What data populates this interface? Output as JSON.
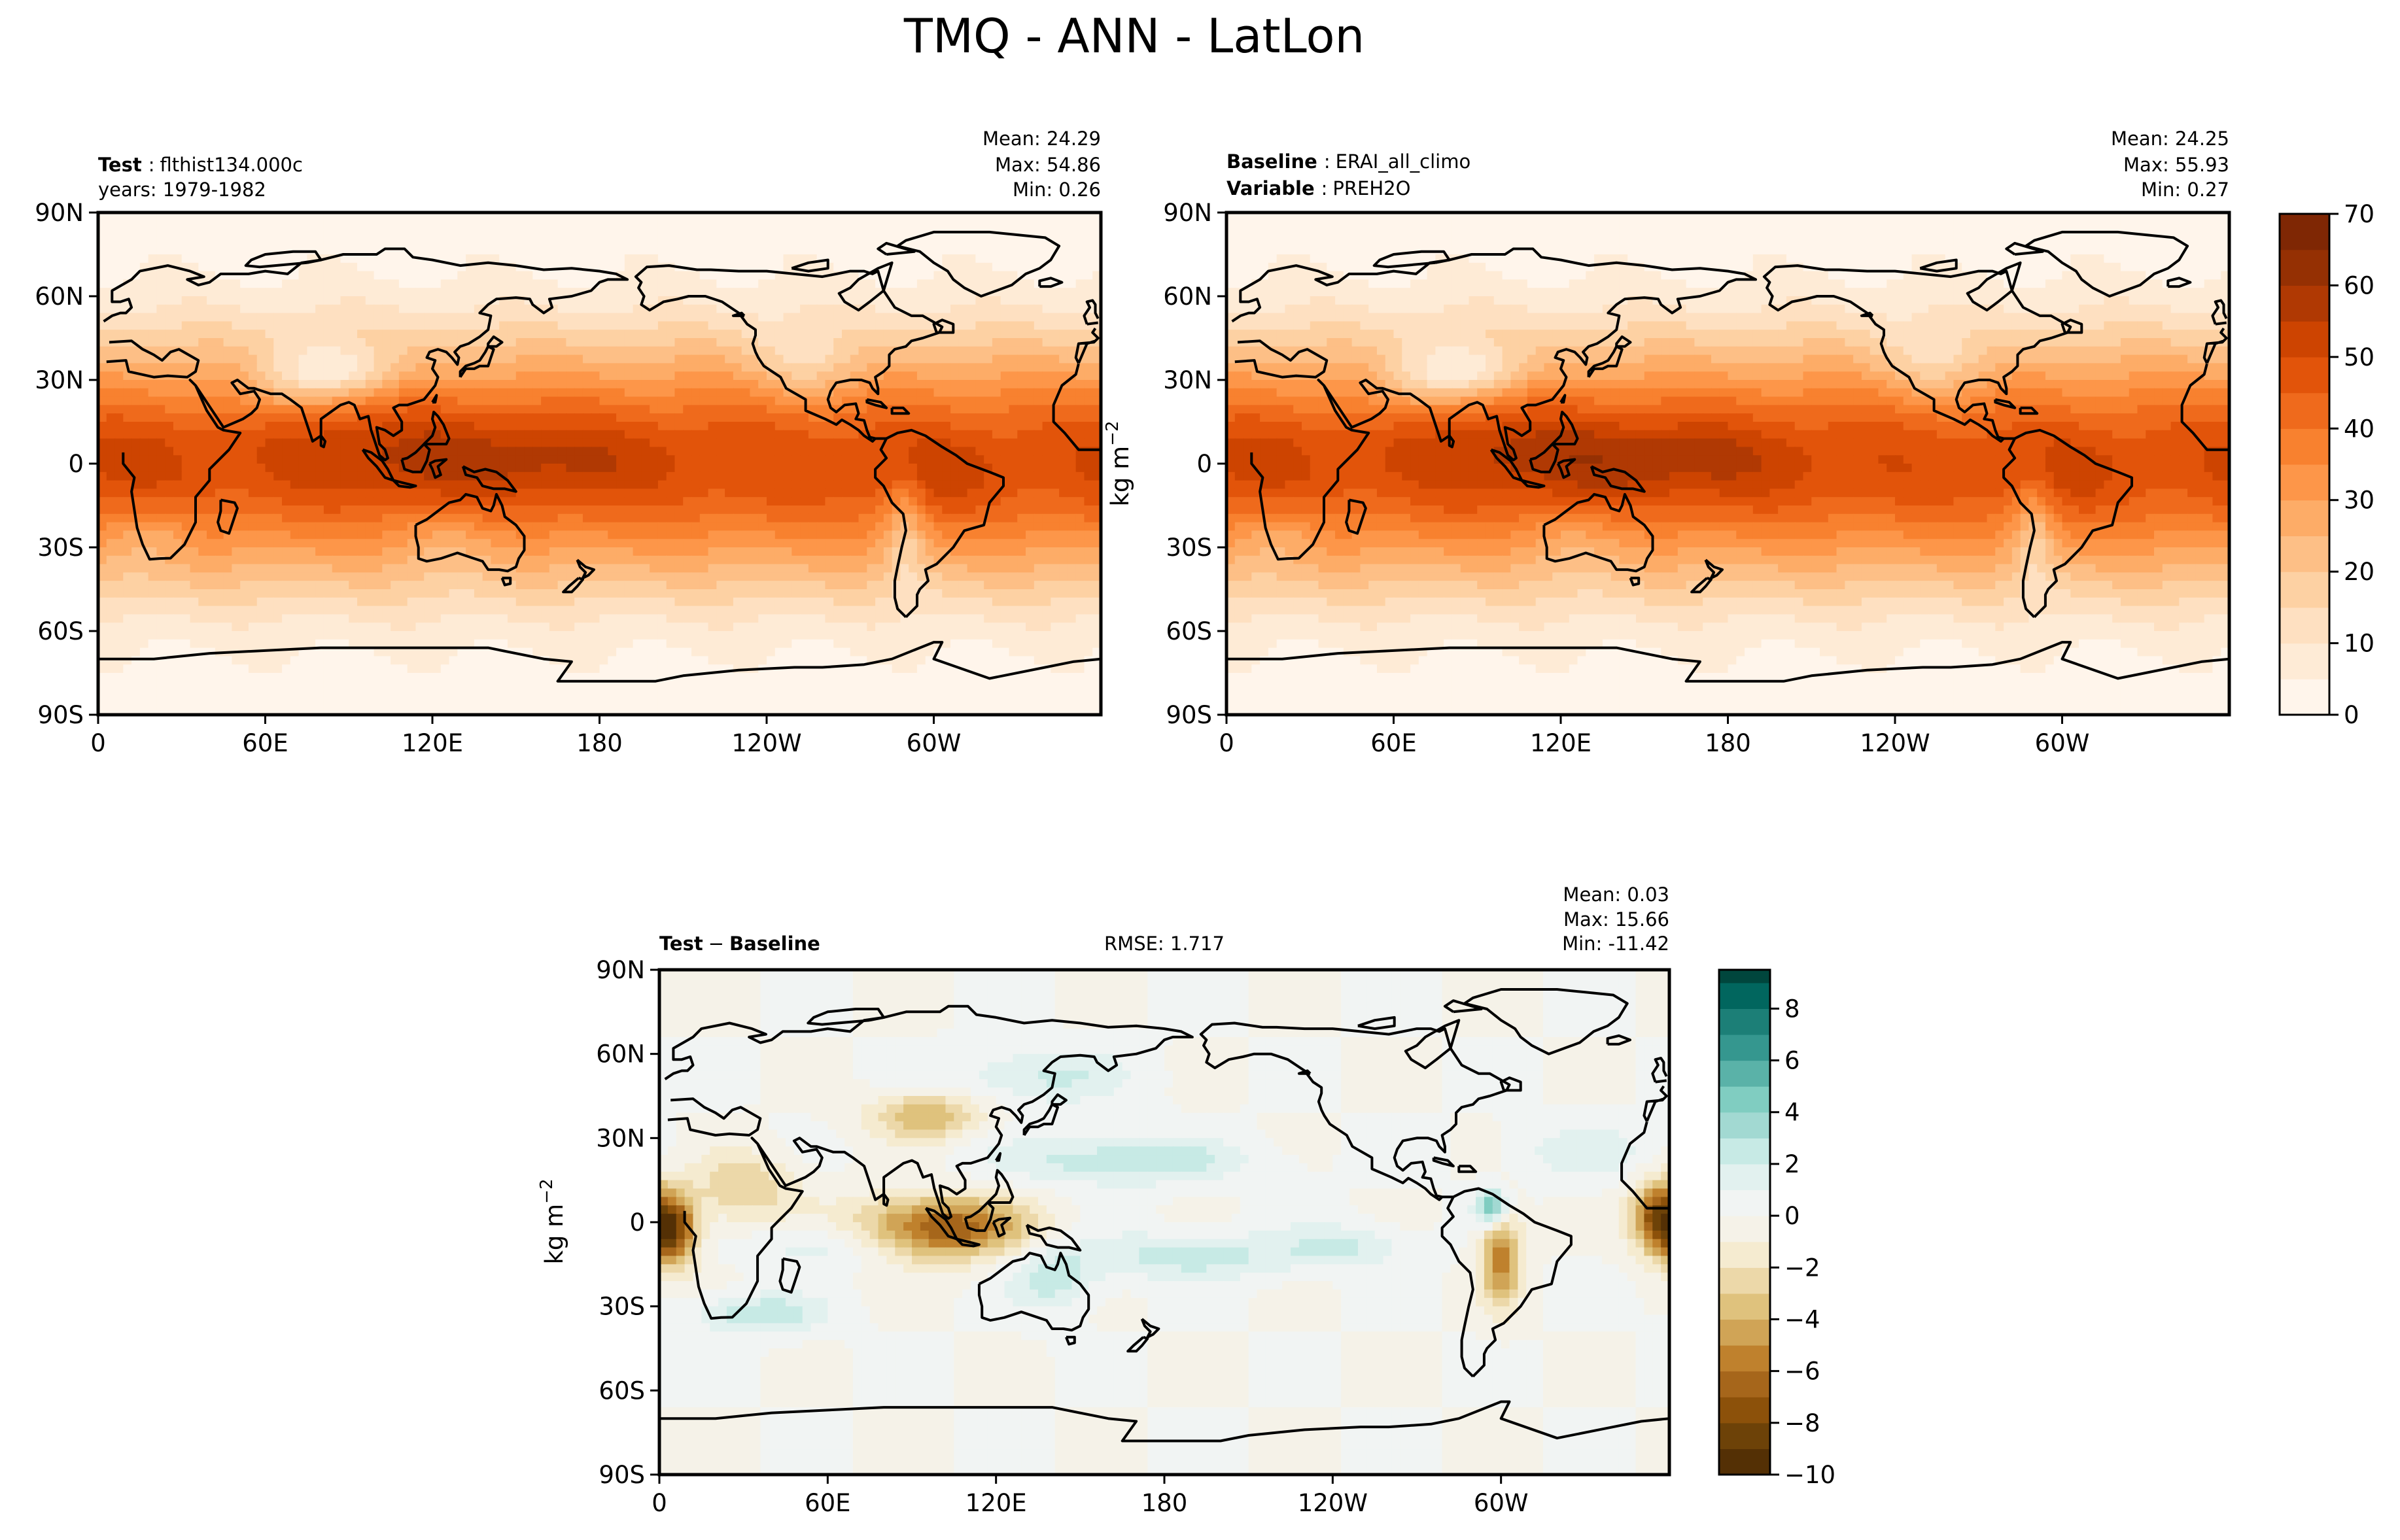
{
  "chart_data": {
    "type": "heatmap",
    "title": "TMQ - ANN - LatLon",
    "panels": [
      {
        "id": "test",
        "left_title_label": "Test",
        "left_title_value": "flthist134.000c",
        "left_subtitle": "years: 1979-1982",
        "stats": {
          "mean": "Mean: 24.29",
          "max": "Max: 54.86",
          "min": "Min:  0.26"
        },
        "lat_ticks": [
          "90N",
          "60N",
          "30N",
          "0",
          "30S",
          "60S",
          "90S"
        ],
        "lon_ticks": [
          "0",
          "60E",
          "120E",
          "180",
          "120W",
          "60W"
        ]
      },
      {
        "id": "baseline",
        "left_title_label": "Baseline",
        "left_title_value": "ERAI_all_climo",
        "left_subtitle_label": "Variable",
        "left_subtitle_value": "PREH2O",
        "stats": {
          "mean": "Mean: 24.25",
          "max": "Max: 55.93",
          "min": "Min:  0.27"
        },
        "lat_ticks": [
          "90N",
          "60N",
          "30N",
          "0",
          "30S",
          "60S",
          "90S"
        ],
        "lon_ticks": [
          "0",
          "60E",
          "120E",
          "180",
          "120W",
          "60W"
        ]
      },
      {
        "id": "diff",
        "left_title_a": "Test",
        "left_title_minus": "−",
        "left_title_b": "Baseline",
        "center_title": "RMSE: 1.717",
        "stats": {
          "mean": "Mean:  0.03",
          "max": "Max: 15.66",
          "min": "Min: -11.42"
        },
        "lat_ticks": [
          "90N",
          "60N",
          "30N",
          "0",
          "30S",
          "60S",
          "90S"
        ],
        "lon_ticks": [
          "0",
          "60E",
          "120E",
          "180",
          "120W",
          "60W"
        ]
      }
    ],
    "colorbars": [
      {
        "id": "main",
        "label_base": "kg m",
        "label_exp": "−2",
        "range": [
          0,
          70
        ],
        "ticks": [
          "0",
          "10",
          "20",
          "30",
          "40",
          "50",
          "60",
          "70"
        ]
      },
      {
        "id": "diff",
        "label_base": "kg m",
        "label_exp": "−2",
        "range": [
          -10,
          9.5
        ],
        "ticks": [
          "−10",
          "−8",
          "−6",
          "−4",
          "−2",
          "0",
          "2",
          "4",
          "6",
          "8"
        ]
      }
    ],
    "stats_summary": {
      "test": {
        "mean": 24.29,
        "max": 54.86,
        "min": 0.26
      },
      "baseline": {
        "mean": 24.25,
        "max": 55.93,
        "min": 0.27
      },
      "diff": {
        "mean": 0.03,
        "max": 15.66,
        "min": -11.42,
        "rmse": 1.717
      }
    }
  },
  "colors": {
    "orange_scale": [
      "#fff5eb",
      "#feebd6",
      "#fee0c1",
      "#fdd1a3",
      "#fdbf86",
      "#fdac67",
      "#fd9649",
      "#f8812f",
      "#ef6a1c",
      "#e2540a",
      "#cd4401",
      "#b03903",
      "#953003",
      "#7f2704"
    ],
    "diverge_neg": [
      "#543005",
      "#6d4208",
      "#8c510a",
      "#a6661b",
      "#bf812d",
      "#d0a456",
      "#dfc27d",
      "#ecd8a9",
      "#f5ebd0",
      "#f5f2e8"
    ],
    "diverge_pos": [
      "#f1f4f3",
      "#e2f1ef",
      "#c7eae5",
      "#a2d9d2",
      "#80cdc1",
      "#5ab2a8",
      "#35978f",
      "#1c7f77",
      "#01665e",
      "#00463d"
    ]
  }
}
